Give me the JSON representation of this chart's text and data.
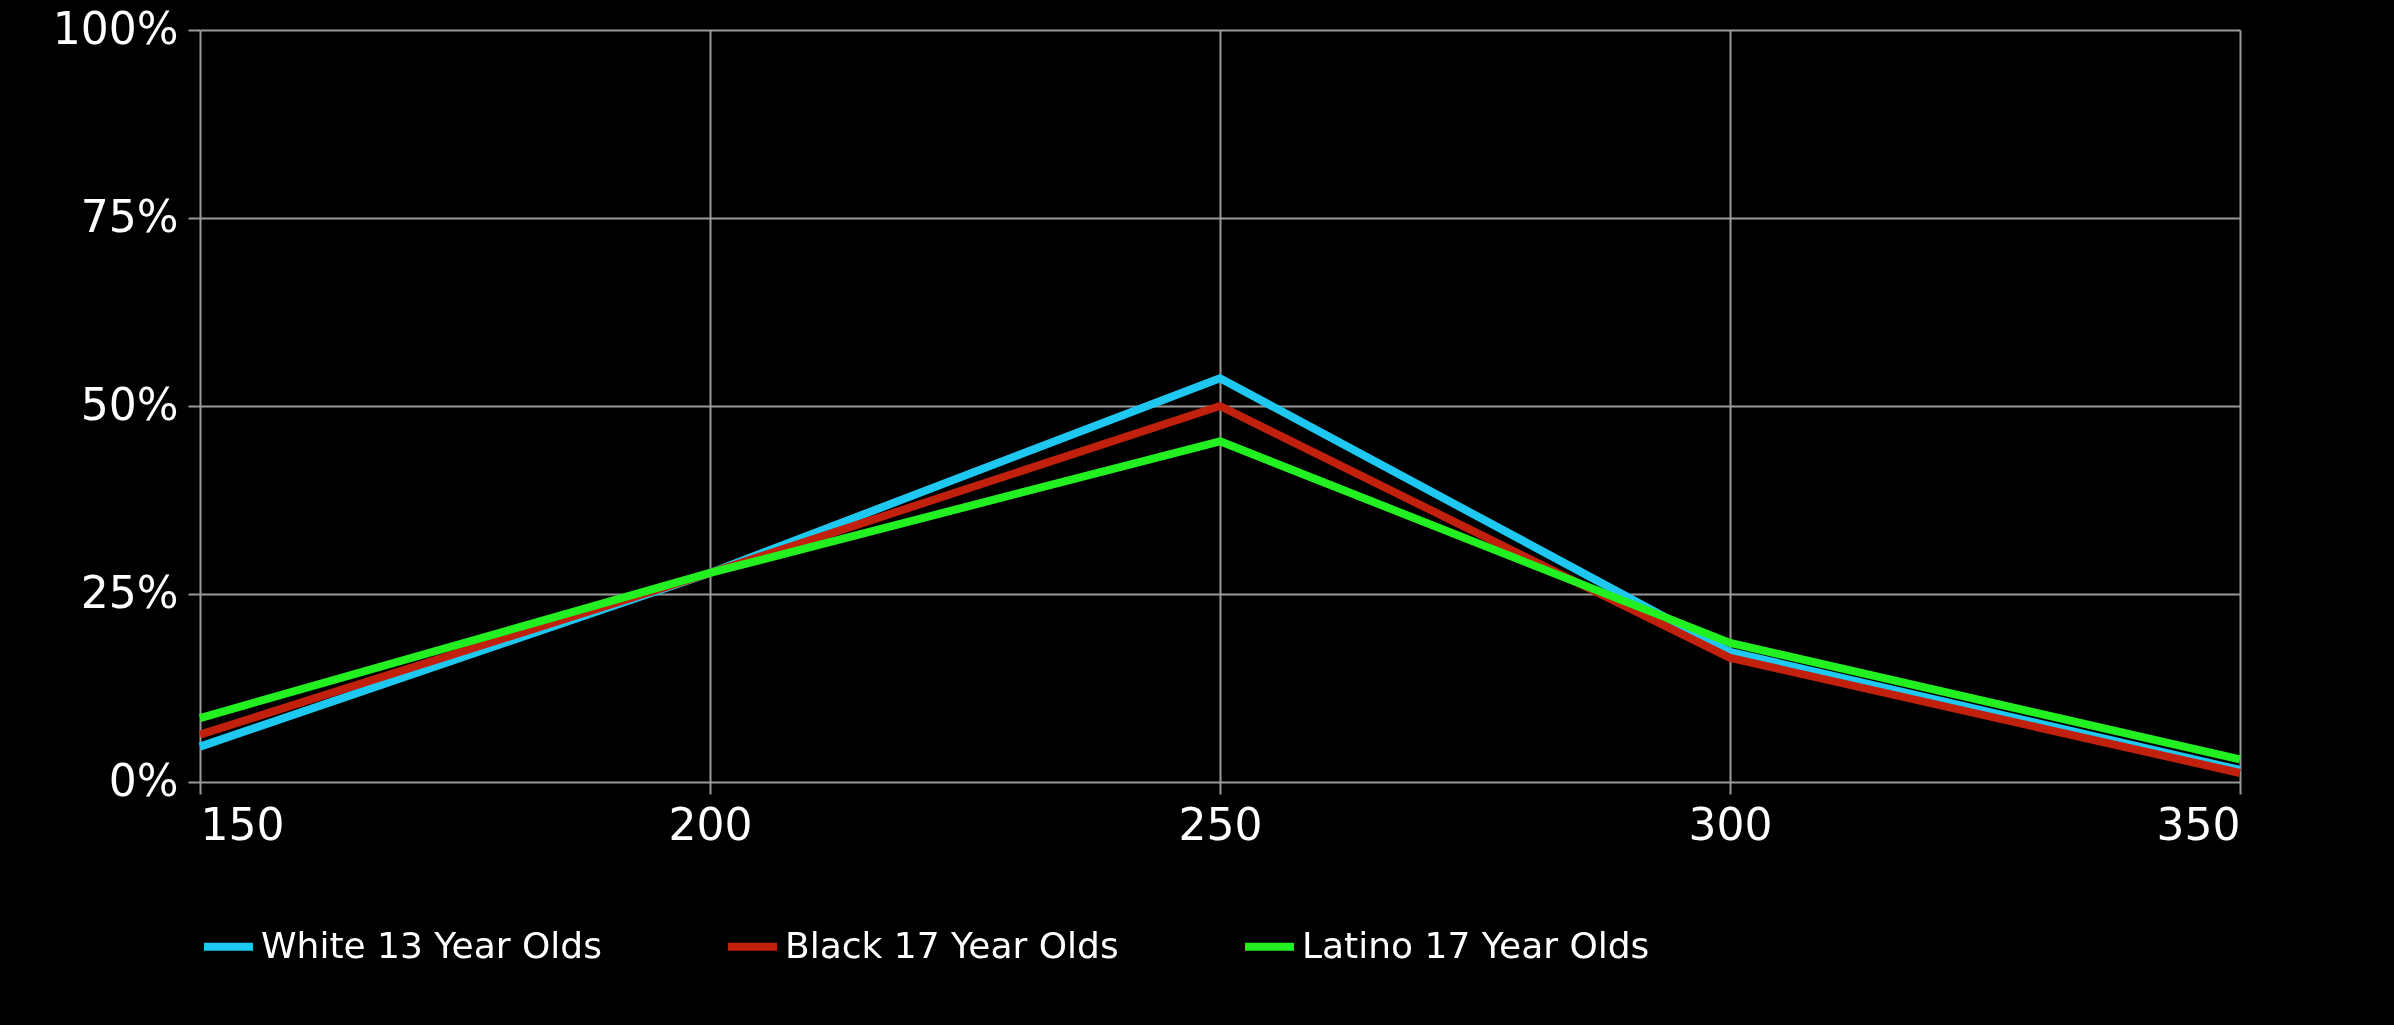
{
  "chart_data": {
    "type": "line",
    "x": [
      150,
      200,
      250,
      300,
      350
    ],
    "series": [
      {
        "name": "White 13 Year Olds",
        "color": "#1ec8f0",
        "values": [
          4.7,
          27.8,
          53.7,
          17.3,
          1.6
        ]
      },
      {
        "name": "Black 17 Year Olds",
        "color": "#c0200c",
        "values": [
          6.3,
          27.8,
          50,
          16.5,
          1.2
        ]
      },
      {
        "name": "Latino 17 Year Olds",
        "color": "#22f020",
        "values": [
          8.5,
          27.8,
          45.3,
          18.5,
          3
        ]
      }
    ],
    "xlim": [
      150,
      350
    ],
    "xticks": [
      150,
      200,
      250,
      300,
      350
    ],
    "ylim": [
      0,
      100
    ],
    "yticks": [
      {
        "value": 0,
        "label": "0%"
      },
      {
        "value": 25,
        "label": "25%"
      },
      {
        "value": 50,
        "label": "50%"
      },
      {
        "value": 75,
        "label": "75%"
      },
      {
        "value": 100,
        "label": "100%"
      }
    ],
    "grid": true,
    "legend": "bottom",
    "marker": "none",
    "line_style": "solid"
  }
}
